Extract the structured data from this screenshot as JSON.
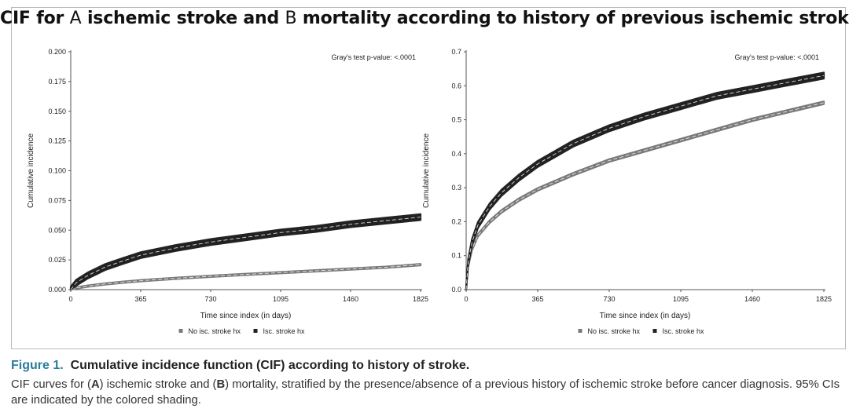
{
  "figure": {
    "title_pre": "CIF for",
    "title_a": "A",
    "title_mid": "ischemic stroke and",
    "title_b": "B",
    "title_post": "mortality according to history of previous ischemic stroke"
  },
  "caption": {
    "fig_label": "Figure 1.",
    "heading": "Cumulative incidence function (CIF) according to history of stroke.",
    "body_1": "CIF curves for (",
    "body_a": "A",
    "body_2": ") ischemic stroke and (",
    "body_b": "B",
    "body_3": ") mortality, stratified by the presence/absence of a previous history of ischemic stroke before cancer diagnosis. 95% CIs are indicated by the colored shading."
  },
  "colors": {
    "no_hx": "#7a7a7a",
    "isc_hx": "#222222",
    "dash": "#ffffff"
  },
  "chart_data": [
    {
      "type": "line",
      "panel": "A",
      "xlabel": "Time since index (in days)",
      "ylabel": "Cumulative incidence",
      "annotation": "Gray's test p-value: <.0001",
      "xlim": [
        0,
        1825
      ],
      "ylim": [
        0,
        0.2
      ],
      "xticks": [
        "0",
        "365",
        "730",
        "1095",
        "1460",
        "1825"
      ],
      "yticks": [
        "0.000",
        "0.025",
        "0.050",
        "0.075",
        "0.100",
        "0.125",
        "0.150",
        "0.175",
        "0.200"
      ],
      "grid": false,
      "legend_position": "bottom",
      "series": [
        {
          "name": "No isc. stroke hx",
          "x": [
            0,
            30,
            90,
            180,
            270,
            365,
            547,
            730,
            912,
            1095,
            1277,
            1460,
            1642,
            1825
          ],
          "y": [
            0,
            0.0015,
            0.003,
            0.0048,
            0.0062,
            0.0075,
            0.0095,
            0.0112,
            0.0128,
            0.0143,
            0.0158,
            0.0173,
            0.0188,
            0.021
          ],
          "ci_halfwidth": 0.0006
        },
        {
          "name": "Isc. stroke hx",
          "x": [
            0,
            30,
            90,
            180,
            270,
            365,
            547,
            730,
            912,
            1095,
            1277,
            1460,
            1642,
            1825
          ],
          "y": [
            0,
            0.006,
            0.012,
            0.019,
            0.024,
            0.029,
            0.035,
            0.04,
            0.044,
            0.048,
            0.051,
            0.055,
            0.058,
            0.061
          ],
          "ci_halfwidth": 0.0025
        }
      ]
    },
    {
      "type": "line",
      "panel": "B",
      "xlabel": "Time since index (in days)",
      "ylabel": "Cumulative incidence",
      "annotation": "Gray's test p-value: <.0001",
      "xlim": [
        0,
        1825
      ],
      "ylim": [
        0,
        0.7
      ],
      "xticks": [
        "0",
        "365",
        "730",
        "1095",
        "1460",
        "1825"
      ],
      "yticks": [
        "0.0",
        "0.1",
        "0.2",
        "0.3",
        "0.4",
        "0.5",
        "0.6",
        "0.7"
      ],
      "grid": false,
      "legend_position": "bottom",
      "series": [
        {
          "name": "No isc. stroke hx",
          "x": [
            0,
            10,
            30,
            60,
            120,
            180,
            270,
            365,
            547,
            730,
            912,
            1095,
            1277,
            1460,
            1642,
            1825
          ],
          "y": [
            0,
            0.07,
            0.12,
            0.16,
            0.2,
            0.23,
            0.265,
            0.295,
            0.34,
            0.38,
            0.41,
            0.44,
            0.47,
            0.5,
            0.525,
            0.55
          ],
          "ci_halfwidth": 0.004
        },
        {
          "name": "Isc. stroke hx",
          "x": [
            0,
            10,
            30,
            60,
            120,
            180,
            270,
            365,
            547,
            730,
            912,
            1095,
            1277,
            1460,
            1642,
            1825
          ],
          "y": [
            0,
            0.08,
            0.14,
            0.19,
            0.245,
            0.285,
            0.33,
            0.37,
            0.43,
            0.475,
            0.51,
            0.54,
            0.57,
            0.59,
            0.61,
            0.63
          ],
          "ci_halfwidth": 0.009
        }
      ]
    }
  ]
}
